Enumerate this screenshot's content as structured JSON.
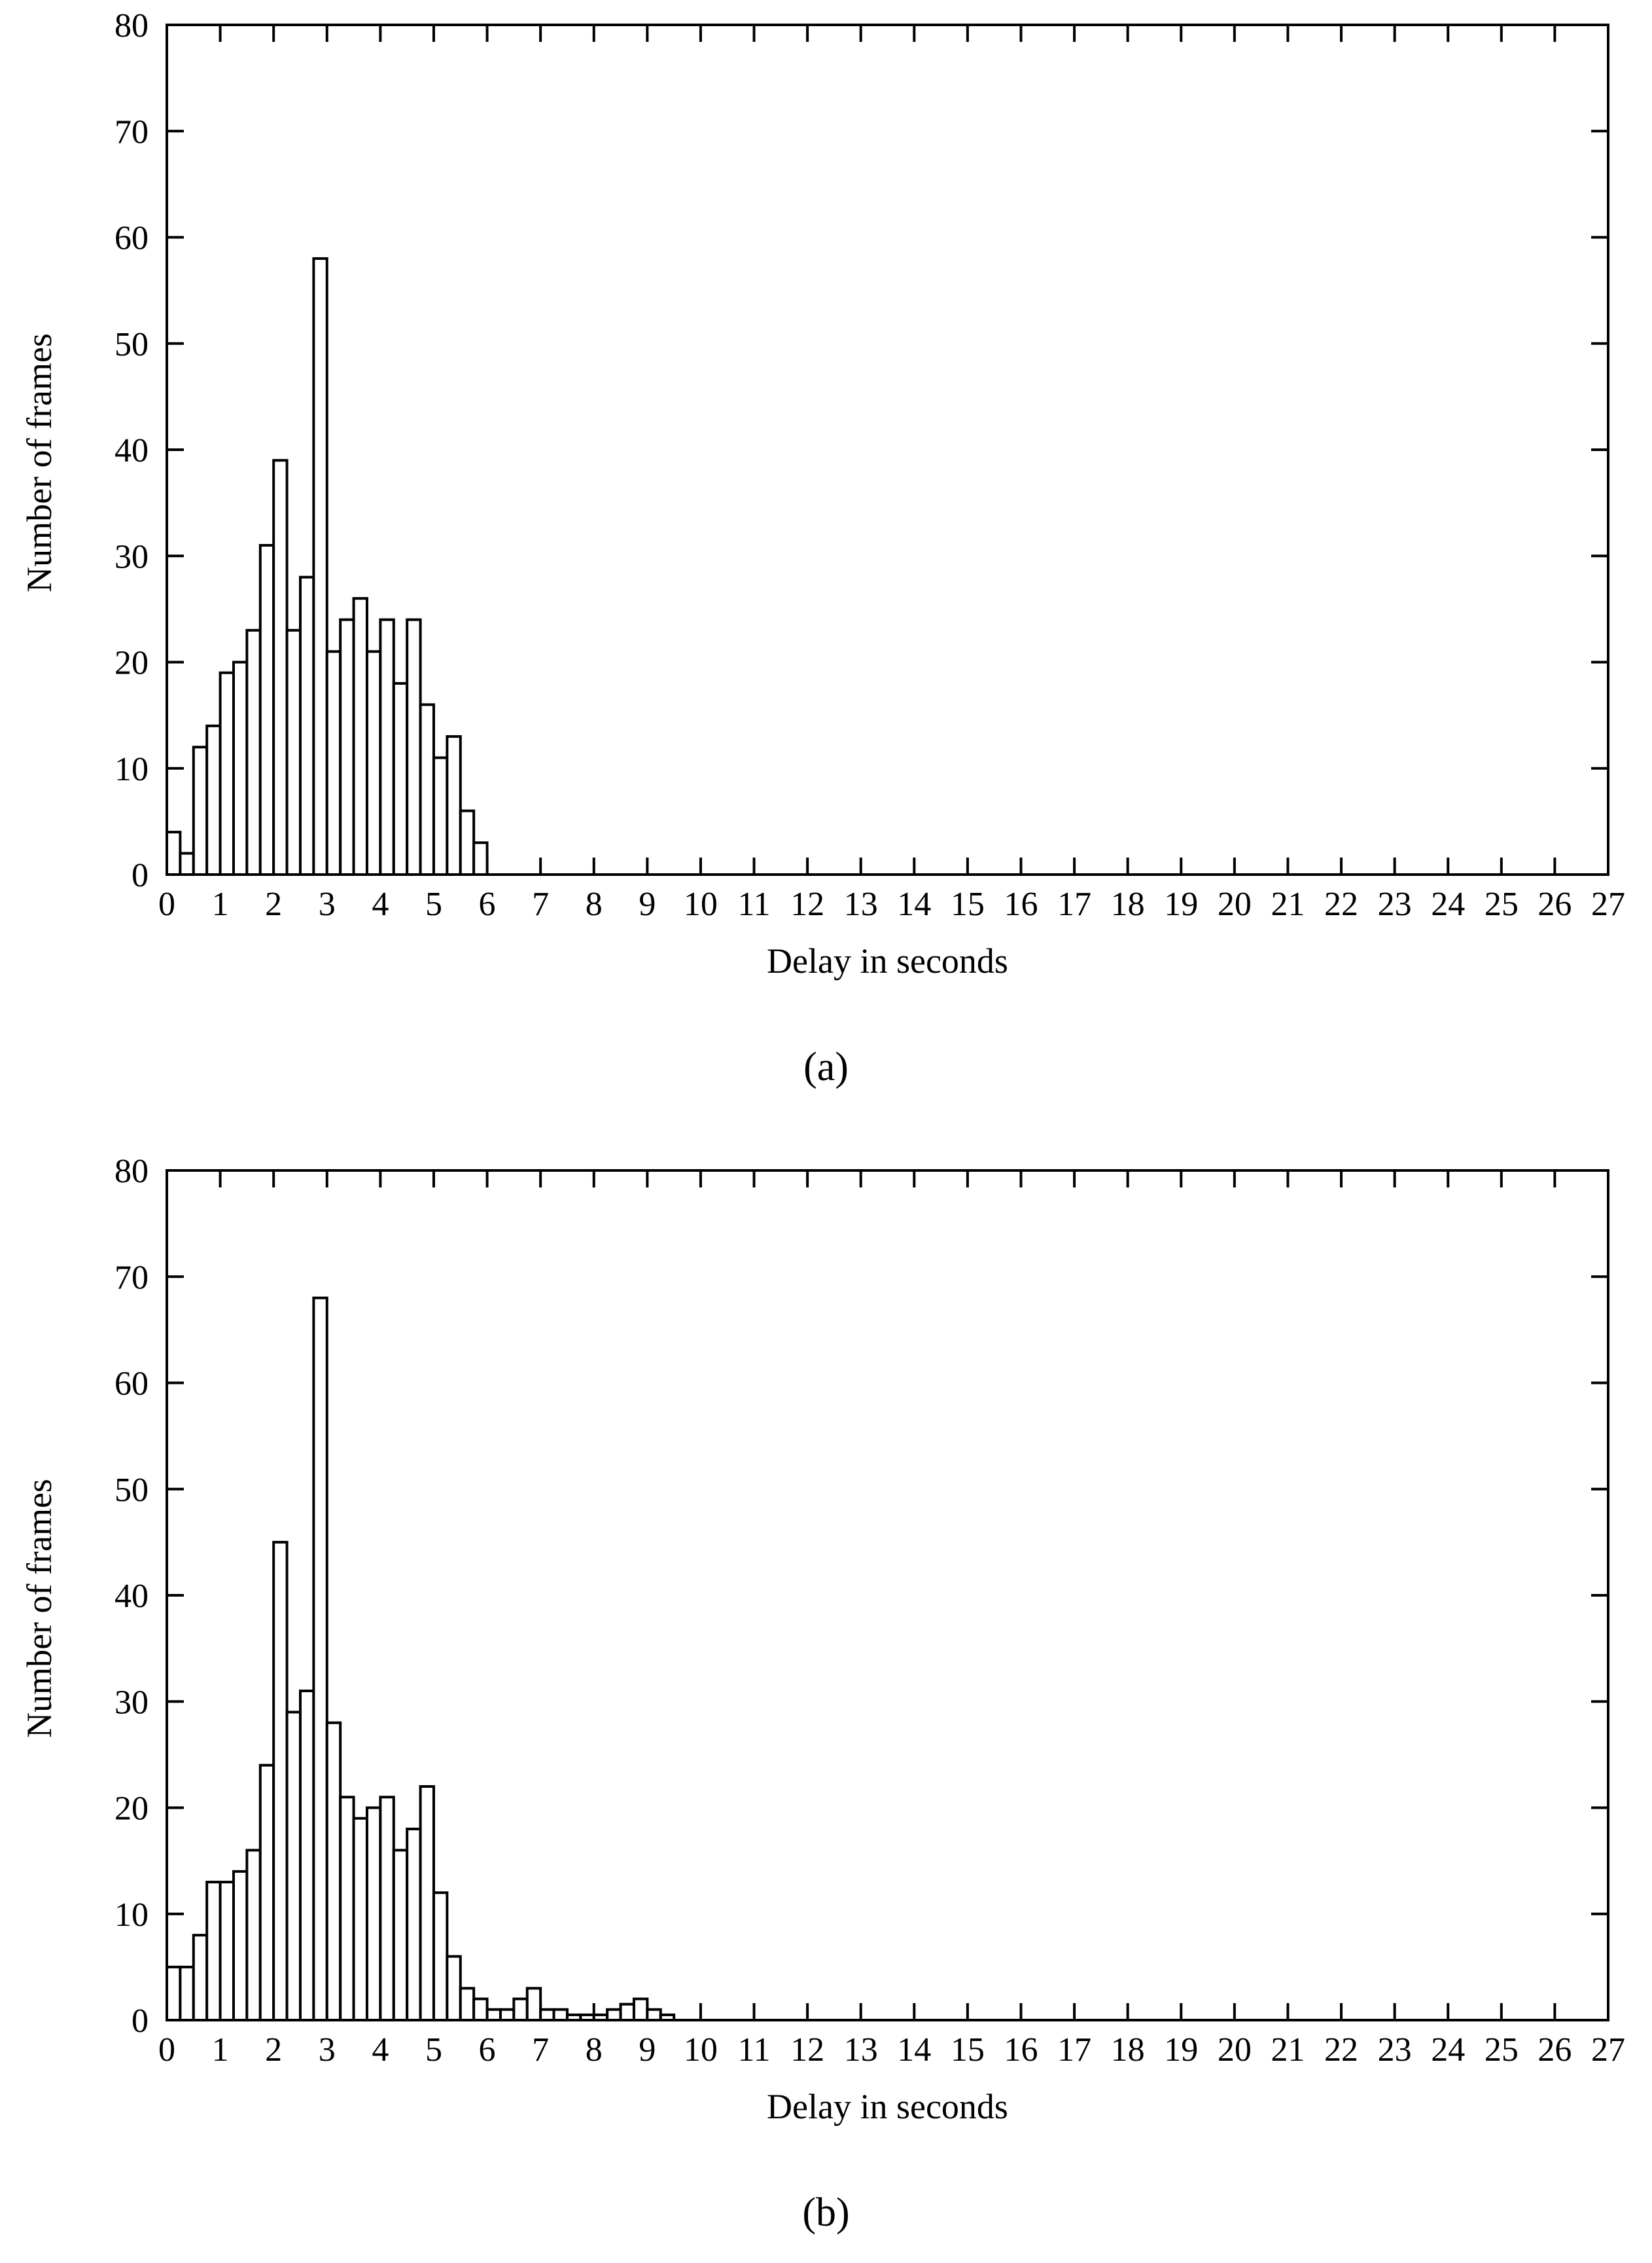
{
  "chart_data": [
    {
      "type": "bar",
      "caption": "(a)",
      "xlabel": "Delay in seconds",
      "ylabel": "Number of frames",
      "xlim": [
        0,
        27
      ],
      "ylim": [
        0,
        80
      ],
      "x_ticks": [
        0,
        1,
        2,
        3,
        4,
        5,
        6,
        7,
        8,
        9,
        10,
        11,
        12,
        13,
        14,
        15,
        16,
        17,
        18,
        19,
        20,
        21,
        22,
        23,
        24,
        25,
        26,
        27
      ],
      "y_ticks": [
        0,
        10,
        20,
        30,
        40,
        50,
        60,
        70,
        80
      ],
      "bin_width": 0.25,
      "x": [
        0,
        0.25,
        0.5,
        0.75,
        1,
        1.25,
        1.5,
        1.75,
        2,
        2.25,
        2.5,
        2.75,
        3,
        3.25,
        3.5,
        3.75,
        4,
        4.25,
        4.5,
        4.75,
        5,
        5.25,
        5.5,
        5.75
      ],
      "values": [
        4,
        2,
        12,
        14,
        19,
        20,
        23,
        31,
        39,
        23,
        28,
        58,
        21,
        24,
        26,
        21,
        24,
        18,
        24,
        16,
        11,
        13,
        6,
        3
      ],
      "grid": false,
      "legend": "none"
    },
    {
      "type": "bar",
      "caption": "(b)",
      "xlabel": "Delay in seconds",
      "ylabel": "Number of frames",
      "xlim": [
        0,
        27
      ],
      "ylim": [
        0,
        80
      ],
      "x_ticks": [
        0,
        1,
        2,
        3,
        4,
        5,
        6,
        7,
        8,
        9,
        10,
        11,
        12,
        13,
        14,
        15,
        16,
        17,
        18,
        19,
        20,
        21,
        22,
        23,
        24,
        25,
        26,
        27
      ],
      "y_ticks": [
        0,
        10,
        20,
        30,
        40,
        50,
        60,
        70,
        80
      ],
      "bin_width": 0.25,
      "x": [
        0,
        0.25,
        0.5,
        0.75,
        1,
        1.25,
        1.5,
        1.75,
        2,
        2.25,
        2.5,
        2.75,
        3,
        3.25,
        3.5,
        3.75,
        4,
        4.25,
        4.5,
        4.75,
        5,
        5.25,
        5.5,
        5.75,
        6,
        6.25,
        6.5,
        6.75,
        7,
        7.25,
        7.5,
        7.75,
        8,
        8.25,
        8.5,
        8.75,
        9,
        9.25
      ],
      "values": [
        5,
        5,
        8,
        13,
        13,
        14,
        16,
        24,
        45,
        29,
        31,
        68,
        28,
        21,
        19,
        20,
        21,
        16,
        18,
        22,
        12,
        6,
        3,
        2,
        1,
        1,
        2,
        3,
        1,
        1,
        0.5,
        0.5,
        0.5,
        1,
        1.5,
        2,
        1,
        0.5
      ],
      "grid": false,
      "legend": "none"
    }
  ]
}
